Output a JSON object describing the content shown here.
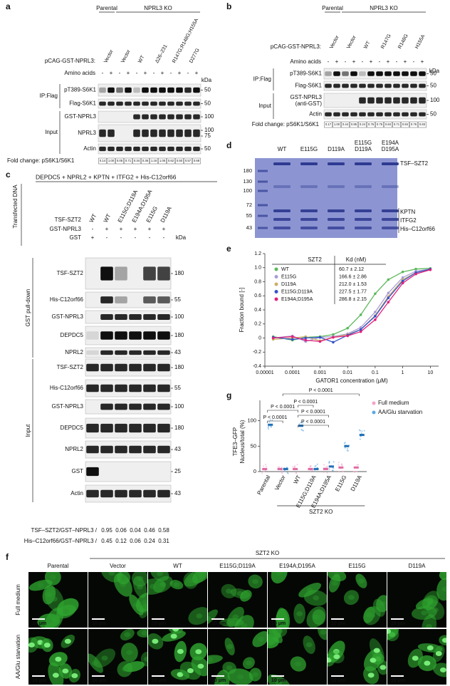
{
  "panel_a": {
    "label": "a",
    "header": [
      "Parental",
      "NPRL3 KO"
    ],
    "construct": "pCAG-GST-NPRL3:",
    "lanes": [
      "Vector",
      "Vector",
      "WT",
      "Δ26–231",
      "R147G;R148G;H155A",
      "D277G"
    ],
    "amino_acids": "Amino acids",
    "signs": [
      "-",
      "+",
      "-",
      "+",
      "-",
      "+",
      "-",
      "+",
      "-",
      "+",
      "-",
      "+"
    ],
    "kda": "kDa",
    "groups": [
      {
        "name": "IP:Flag",
        "rows": [
          {
            "name": "pT389-S6K1",
            "markers": [
              "50"
            ]
          },
          {
            "name": "Flag-S6K1",
            "markers": [
              "50"
            ]
          }
        ]
      },
      {
        "name": "Input",
        "rows": [
          {
            "name": "GST-NPRL3",
            "markers": [
              "100"
            ]
          },
          {
            "name": "NPRL3",
            "markers": [
              "100",
              "75"
            ]
          },
          {
            "name": "Actin",
            "markers": [
              "50"
            ]
          }
        ]
      }
    ],
    "fold_label": "Fold change: pS6K1/S6K1",
    "fold_values": [
      "0.14",
      "1.00",
      "0.05",
      "0.71",
      "0.34",
      "0.36",
      "1.16",
      "1.05",
      "0.62",
      "0.50",
      "0.57",
      "0.68"
    ]
  },
  "panel_b": {
    "label": "b",
    "header": [
      "Parental",
      "NPRL3 KO"
    ],
    "construct": "pCAG-GST-NPRL3:",
    "lanes": [
      "Vector",
      "Vector",
      "WT",
      "R147G",
      "R148G",
      "H155A"
    ],
    "amino_acids": "Amino acids",
    "signs": [
      "-",
      "+",
      "-",
      "+",
      "-",
      "+",
      "-",
      "+",
      "-",
      "+",
      "-",
      "+"
    ],
    "kda": "kDa",
    "groups": [
      {
        "name": "IP:Flag",
        "rows": [
          {
            "name": "pT389-S6K1",
            "markers": [
              "50"
            ]
          },
          {
            "name": "Flag-S6K1",
            "markers": [
              "50"
            ]
          }
        ]
      },
      {
        "name": "Input",
        "rows": [
          {
            "name": "GST-NPRL3",
            "subname": "(anti-GST)",
            "markers": [
              "100"
            ]
          },
          {
            "name": "Actin",
            "markers": [
              "50"
            ]
          }
        ]
      }
    ],
    "fold_label": "Fold change: pS6K1/S6K1",
    "fold_values": [
      "0.17",
      "1.00",
      "0.44",
      "0.85",
      "0.24",
      "0.76",
      "0.75",
      "0.84",
      "0.71",
      "0.84",
      "0.76",
      "0.83"
    ]
  },
  "panel_c": {
    "label": "c",
    "header": "DEPDC5 + NPRL2 + KPTN + ITFG2 + His-C12orf66",
    "transfected": "Transfected DNA",
    "row_labels": [
      "TSF-SZT2",
      "GST-NPRL3",
      "GST"
    ],
    "lanes": [
      "WT",
      "WT",
      "E115G;D119A",
      "E194A;D195A",
      "E115G",
      "D119A"
    ],
    "gst_nprl3_signs": [
      "-",
      "+",
      "+",
      "+",
      "+",
      "+"
    ],
    "gst_signs": [
      "+",
      "-",
      "-",
      "-",
      "-",
      "-"
    ],
    "kda": "kDa",
    "groups": [
      {
        "name": "GST pull-down",
        "rows": [
          {
            "name": "TSF-SZT2",
            "markers": [
              "180"
            ]
          },
          {
            "name": "His-C12orf66",
            "markers": [
              "55"
            ]
          },
          {
            "name": "GST-NPRL3",
            "markers": [
              "100"
            ]
          },
          {
            "name": "DEPDC5",
            "markers": [
              "180"
            ]
          },
          {
            "name": "NPRL2",
            "markers": [
              "43"
            ]
          }
        ]
      },
      {
        "name": "Input",
        "rows": [
          {
            "name": "TSF-SZT2",
            "markers": [
              "180"
            ]
          },
          {
            "name": "His-C12orf66",
            "markers": [
              "55"
            ]
          },
          {
            "name": "GST-NPRL3",
            "markers": [
              "100"
            ]
          },
          {
            "name": "DEPDC5",
            "markers": [
              "180"
            ]
          },
          {
            "name": "NPRL2",
            "markers": [
              "43"
            ]
          },
          {
            "name": "GST",
            "markers": [
              "25"
            ]
          },
          {
            "name": "Actin",
            "markers": [
              "43"
            ]
          }
        ]
      }
    ],
    "ratio_rows": [
      {
        "label": "TSF–SZT2/GST–NPRL3 /",
        "values": [
          "0.95",
          "0.06",
          "0.04",
          "0.46",
          "0.58"
        ]
      },
      {
        "label": "His–C12orf66/GST–NPRL3 /",
        "values": [
          "0.45",
          "0.12",
          "0.06",
          "0.24",
          "0.31"
        ]
      }
    ]
  },
  "panel_d": {
    "label": "d",
    "lanes": [
      [
        "WT"
      ],
      [
        "E115G"
      ],
      [
        "D119A"
      ],
      [
        "E115G",
        "D119A"
      ],
      [
        "E194A",
        "D195A"
      ]
    ],
    "markers": [
      "180",
      "130",
      "100",
      "72",
      "55",
      "43"
    ],
    "right_labels": [
      "TSF–SZT2",
      "KPTN",
      "ITFG2",
      "His–C12orf66"
    ]
  },
  "panel_f": {
    "label": "f",
    "group": "SZT2 KO",
    "columns": [
      "Parental",
      "Vector",
      "WT",
      "E115G;D119A",
      "E194A;D195A",
      "E115G",
      "D119A"
    ],
    "rows": [
      "Full medium",
      "AA/Glu starvation"
    ],
    "scale_bar": "10 μm"
  },
  "chart_data": [
    {
      "type": "line",
      "label": "e",
      "xlabel": "GATOR1 concentration (μM)",
      "ylabel": "Fraction bound [-]",
      "xlog": true,
      "xlim": [
        1e-05,
        20
      ],
      "ylim": [
        -0.4,
        1.2
      ],
      "xticks": [
        1e-05,
        0.0001,
        0.001,
        0.01,
        0.1,
        1,
        10
      ],
      "yticks": [
        -0.4,
        -0.2,
        0,
        0.2,
        0.4,
        0.6,
        0.8,
        {
          "value": 1,
          "label": "1.0"
        },
        1.2
      ],
      "x": [
        2e-05,
        0.0001,
        0.0003,
        0.001,
        0.003,
        0.01,
        0.03,
        0.1,
        0.3,
        1,
        3,
        10
      ],
      "legend_header": [
        "SZT2",
        "Kd (nM)"
      ],
      "series": [
        {
          "name": "WT",
          "color": "#5cb85c",
          "kd": "60.7 ± 2.12",
          "values": [
            0.02,
            -0.03,
            0.01,
            0.02,
            0.05,
            0.14,
            0.33,
            0.63,
            0.83,
            0.94,
            0.98,
            0.99
          ]
        },
        {
          "name": "E115G",
          "color": "#a99bd6",
          "kd": "166.6 ± 2.86",
          "values": [
            0,
            0.03,
            -0.05,
            0.01,
            0.02,
            0.06,
            0.15,
            0.37,
            0.64,
            0.86,
            0.95,
            0.98
          ]
        },
        {
          "name": "D119A",
          "color": "#c9b06a",
          "kd": "212.0 ± 1.53",
          "values": [
            -0.02,
            0,
            0.02,
            -0.04,
            0.01,
            0.05,
            0.12,
            0.32,
            0.59,
            0.83,
            0.93,
            0.98
          ]
        },
        {
          "name": "E115G;D119A",
          "color": "#3352c9",
          "kd": "227.5 ± 1.77",
          "values": [
            0.01,
            -0.02,
            0,
            0.01,
            -0.06,
            0.04,
            0.12,
            0.31,
            0.57,
            0.81,
            0.93,
            0.98
          ]
        },
        {
          "name": "E194A;D195A",
          "color": "#e0207a",
          "kd": "286.8 ± 2.15",
          "values": [
            0,
            0.02,
            -0.03,
            -0.05,
            0.01,
            0.03,
            0.09,
            0.26,
            0.51,
            0.78,
            0.91,
            0.97
          ]
        }
      ]
    },
    {
      "type": "strip",
      "label": "g",
      "ylabel": [
        "TFE3–GFP",
        "Nucleus/total (%)"
      ],
      "categories": [
        "Parental",
        "Vector",
        "WT",
        "E115G;D119A",
        "E194A;D195A",
        "E115G",
        "D119A"
      ],
      "group_label": "SZT2 KO",
      "ylim": [
        0,
        140
      ],
      "yticks": [
        0,
        50,
        100
      ],
      "series": [
        {
          "name": "Full medium",
          "color": "#f3a3c9",
          "values": [
            5,
            5,
            5,
            5,
            5,
            8,
            8
          ]
        },
        {
          "name": "AA/Glu starvation",
          "color": "#5aa9e6",
          "values": [
            92,
            5,
            90,
            5,
            10,
            50,
            72
          ]
        }
      ],
      "annotations": [
        "P < 0.0001",
        "P < 0.0001",
        "P < 0.0001",
        "P < 0.0001",
        "P < 0.0001",
        "P < 0.0001"
      ]
    }
  ]
}
